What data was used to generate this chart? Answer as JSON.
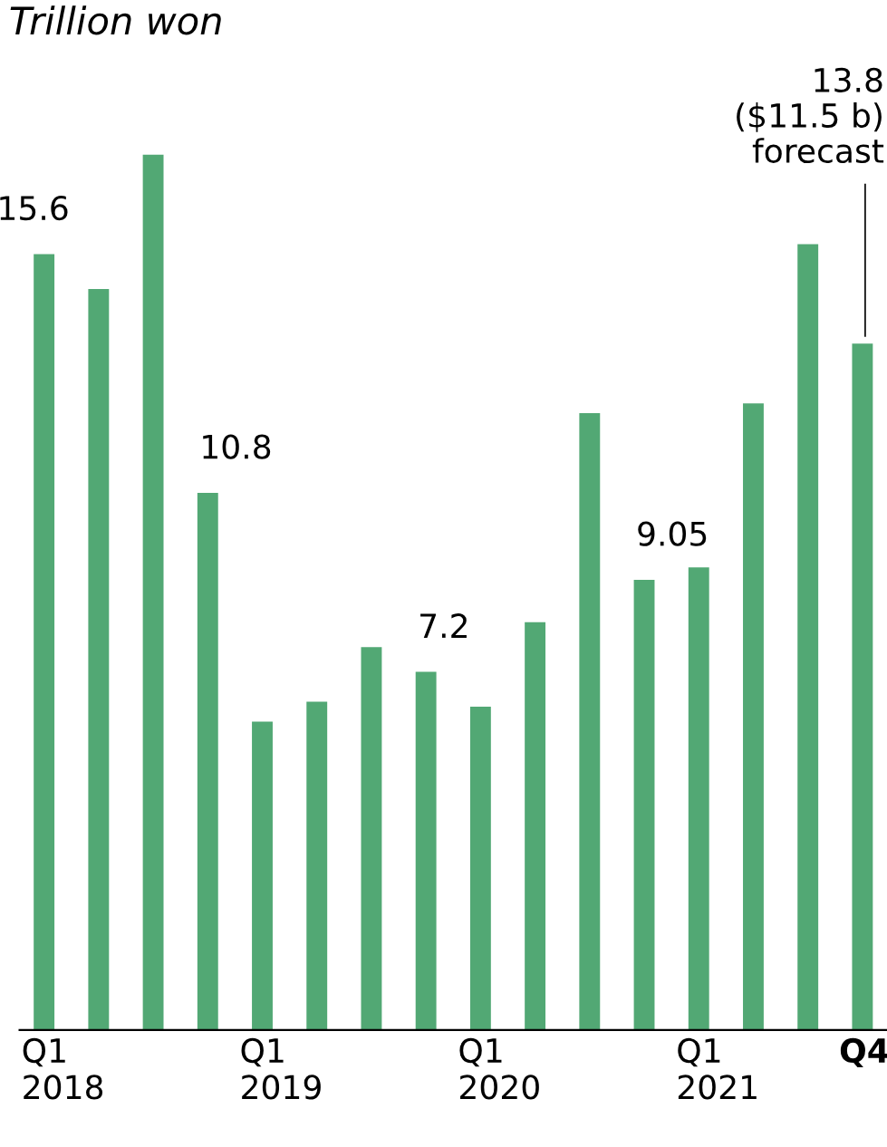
{
  "chart_data": {
    "type": "bar",
    "title": "Trillion won",
    "categories": [
      "Q1\n2018",
      null,
      null,
      null,
      "Q1\n2019",
      null,
      null,
      null,
      "Q1\n2020",
      null,
      null,
      null,
      "Q1\n2021",
      null,
      null,
      "Q4"
    ],
    "values": [
      15.6,
      14.9,
      17.6,
      10.8,
      6.2,
      6.6,
      7.7,
      7.2,
      6.5,
      8.2,
      12.4,
      9.05,
      9.3,
      12.6,
      15.8,
      13.8
    ],
    "value_labels": [
      "15.6",
      null,
      null,
      "10.8",
      null,
      null,
      null,
      "7.2",
      null,
      null,
      null,
      "9.05",
      null,
      null,
      null,
      null
    ],
    "color": "#52a874",
    "annotations": [
      "13.8\n($11.5 b)\nforecast"
    ]
  }
}
